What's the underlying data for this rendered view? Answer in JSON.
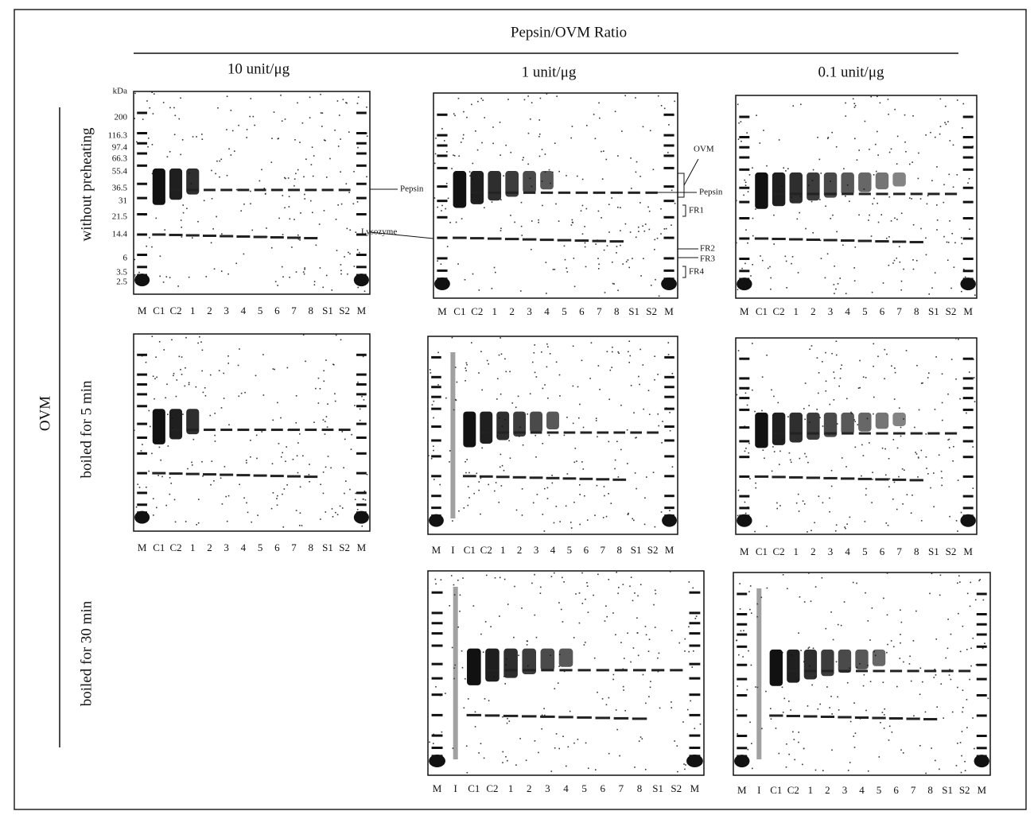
{
  "header": {
    "title": "Pepsin/OVM Ratio",
    "columns": [
      "10 unit/μg",
      "1 unit/μg",
      "0.1 unit/μg"
    ]
  },
  "group_label": "OVM",
  "rows": [
    "without preheating",
    "boiled for 5 min",
    "boiled for 30 min"
  ],
  "size_markers": {
    "unit": "kDa",
    "labels": [
      "200",
      "116.3",
      "97.4",
      "66.3",
      "55.4",
      "36.5",
      "31",
      "21.5",
      "14.4",
      "6",
      "3.5",
      "2.5"
    ]
  },
  "panels": [
    {
      "lanes": [
        "M",
        "C1",
        "C2",
        "1",
        "2",
        "3",
        "4",
        "5",
        "6",
        "7",
        "8",
        "S1",
        "S2",
        "M"
      ]
    },
    {
      "lanes": [
        "M",
        "C1",
        "C2",
        "1",
        "2",
        "3",
        "4",
        "5",
        "6",
        "7",
        "8",
        "S1",
        "S2",
        "M"
      ]
    },
    {
      "lanes": [
        "M",
        "C1",
        "C2",
        "1",
        "2",
        "3",
        "4",
        "5",
        "6",
        "7",
        "8",
        "S1",
        "S2",
        "M"
      ]
    },
    {
      "lanes": [
        "M",
        "C1",
        "C2",
        "1",
        "2",
        "3",
        "4",
        "5",
        "6",
        "7",
        "8",
        "S1",
        "S2",
        "M"
      ]
    },
    {
      "lanes": [
        "M",
        "I",
        "C1",
        "C2",
        "1",
        "2",
        "3",
        "4",
        "5",
        "6",
        "7",
        "8",
        "S1",
        "S2",
        "M"
      ]
    },
    {
      "lanes": [
        "M",
        "C1",
        "C2",
        "1",
        "2",
        "3",
        "4",
        "5",
        "6",
        "7",
        "8",
        "S1",
        "S2",
        "M"
      ]
    },
    {
      "lanes": [
        "M",
        "I",
        "C1",
        "C2",
        "1",
        "2",
        "3",
        "4",
        "5",
        "6",
        "7",
        "8",
        "S1",
        "S2",
        "M"
      ]
    },
    {
      "lanes": [
        "M",
        "I",
        "C1",
        "C2",
        "1",
        "2",
        "3",
        "4",
        "5",
        "6",
        "7",
        "8",
        "S1",
        "S2",
        "M"
      ]
    }
  ],
  "annotations": {
    "pepsin_left": "Pepsin",
    "lysozyme": "Lysozyme",
    "ovm": "OVM",
    "pepsin_right": "Pepsin",
    "fr1": "FR1",
    "fr2": "FR2",
    "fr3": "FR3",
    "fr4": "FR4"
  }
}
